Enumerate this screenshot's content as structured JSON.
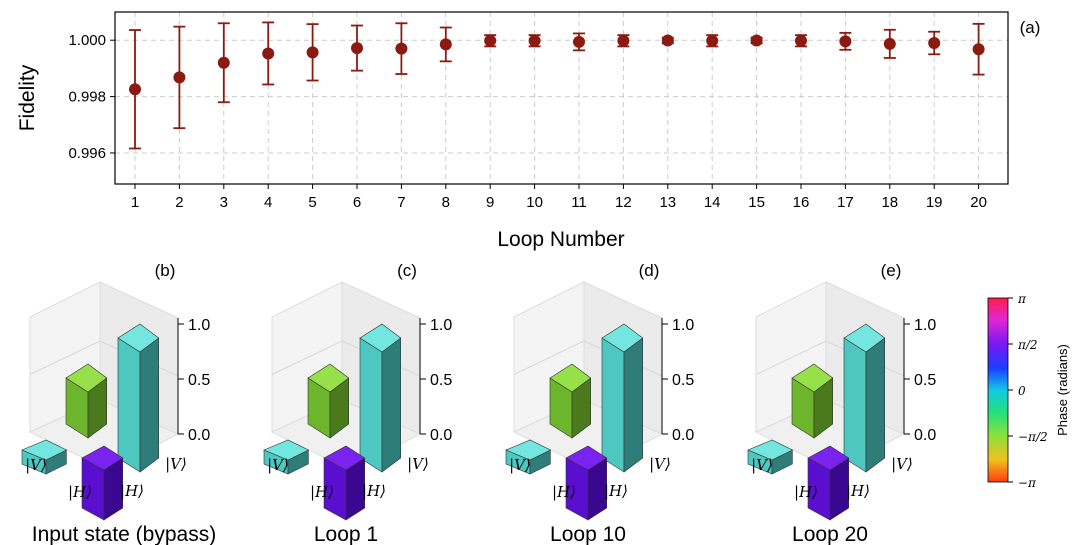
{
  "panels": {
    "a_label": "(a)",
    "b_label": "(b)",
    "c_label": "(c)",
    "d_label": "(d)",
    "e_label": "(e)"
  },
  "colors": {
    "marker": "#8b1a10",
    "grid": "#cccccc",
    "bar_cyan": "#5fd8d2",
    "bar_green": "#8fd43a",
    "bar_purple": "#6a12e8"
  },
  "chart_data": [
    {
      "type": "scatter",
      "panel": "(a)",
      "xlabel": "Loop Number",
      "ylabel": "Fidelity",
      "x": [
        1,
        2,
        3,
        4,
        5,
        6,
        7,
        8,
        9,
        10,
        11,
        12,
        13,
        14,
        15,
        16,
        17,
        18,
        19,
        20
      ],
      "y": [
        0.99826,
        0.99868,
        0.9992,
        0.99953,
        0.99957,
        0.99972,
        0.9997,
        0.99985,
        0.99998,
        0.99998,
        0.99994,
        0.99998,
        0.99999,
        0.99998,
        0.99999,
        0.99998,
        0.99996,
        0.99987,
        0.9999,
        0.99968
      ],
      "yerr": [
        0.0021,
        0.0018,
        0.0014,
        0.0011,
        0.001,
        0.0008,
        0.0009,
        0.0006,
        0.0002,
        0.0002,
        0.0003,
        0.0002,
        0.0001,
        0.0002,
        0.0001,
        0.0002,
        0.0003,
        0.0005,
        0.0004,
        0.0009
      ],
      "yticks": [
        "0.996",
        "0.998",
        "1.000"
      ],
      "ylim": [
        0.9949,
        1.001
      ],
      "xticks": [
        "1",
        "2",
        "3",
        "4",
        "5",
        "6",
        "7",
        "8",
        "9",
        "10",
        "11",
        "12",
        "13",
        "14",
        "15",
        "16",
        "17",
        "18",
        "19",
        "20"
      ],
      "grid": true
    },
    {
      "type": "bar3d",
      "panel": "(b)",
      "caption": "Input state (bypass)",
      "row_labels": [
        "|V⟩",
        "|H⟩"
      ],
      "col_labels": [
        "|V⟩",
        "|H⟩"
      ],
      "zticks": [
        "0.0",
        "0.5",
        "1.0"
      ],
      "matrix": [
        [
          0.82,
          0.3
        ],
        [
          0.3,
          0.16
        ]
      ],
      "matrix_colors": [
        [
          "cyan",
          "green"
        ],
        [
          "purple",
          "cyan"
        ]
      ]
    },
    {
      "type": "bar3d",
      "panel": "(c)",
      "caption": "Loop 1",
      "row_labels": [
        "|V⟩",
        "|H⟩"
      ],
      "col_labels": [
        "|V⟩",
        "|H⟩"
      ],
      "zticks": [
        "0.0",
        "0.5",
        "1.0"
      ],
      "matrix": [
        [
          0.82,
          0.3
        ],
        [
          0.3,
          0.16
        ]
      ],
      "matrix_colors": [
        [
          "cyan",
          "green"
        ],
        [
          "purple",
          "cyan"
        ]
      ]
    },
    {
      "type": "bar3d",
      "panel": "(d)",
      "caption": "Loop 10",
      "row_labels": [
        "|V⟩",
        "|H⟩"
      ],
      "col_labels": [
        "|V⟩",
        "|H⟩"
      ],
      "zticks": [
        "0.0",
        "0.5",
        "1.0"
      ],
      "matrix": [
        [
          0.82,
          0.3
        ],
        [
          0.3,
          0.16
        ]
      ],
      "matrix_colors": [
        [
          "cyan",
          "green"
        ],
        [
          "purple",
          "cyan"
        ]
      ]
    },
    {
      "type": "bar3d",
      "panel": "(e)",
      "caption": "Loop 20",
      "row_labels": [
        "|V⟩",
        "|H⟩"
      ],
      "col_labels": [
        "|V⟩",
        "|H⟩"
      ],
      "zticks": [
        "0.0",
        "0.5",
        "1.0"
      ],
      "matrix": [
        [
          0.82,
          0.3
        ],
        [
          0.3,
          0.16
        ]
      ],
      "matrix_colors": [
        [
          "cyan",
          "green"
        ],
        [
          "purple",
          "cyan"
        ]
      ]
    },
    {
      "type": "colorbar",
      "label": "Phase (radians)",
      "ticks": [
        "π",
        "π/2",
        "0",
        "−π/2",
        "−π"
      ]
    }
  ]
}
